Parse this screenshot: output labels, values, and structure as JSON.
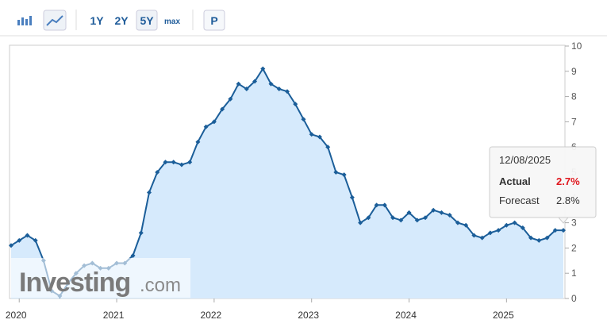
{
  "toolbar": {
    "buttons": [
      "1Y",
      "2Y",
      "5Y",
      "max",
      "P"
    ],
    "active": "5Y"
  },
  "watermark": {
    "brand": "Investing",
    "suffix": ".com"
  },
  "chart_data": {
    "type": "area-line",
    "categories": [
      null,
      "2020",
      null,
      null,
      null,
      null,
      null,
      null,
      null,
      null,
      null,
      null,
      null,
      "2021",
      null,
      null,
      null,
      null,
      null,
      null,
      null,
      null,
      null,
      null,
      null,
      "2022",
      null,
      null,
      null,
      null,
      null,
      null,
      null,
      null,
      null,
      null,
      null,
      "2023",
      null,
      null,
      null,
      null,
      null,
      null,
      null,
      null,
      null,
      null,
      null,
      "2024",
      null,
      null,
      null,
      null,
      null,
      null,
      null,
      null,
      null,
      null,
      null,
      "2025",
      null,
      null,
      null,
      null,
      null,
      null,
      null
    ],
    "values": [
      2.1,
      2.3,
      2.5,
      2.3,
      1.5,
      0.3,
      0.1,
      0.6,
      1.0,
      1.3,
      1.4,
      1.2,
      1.2,
      1.4,
      1.4,
      1.7,
      2.6,
      4.2,
      5.0,
      5.4,
      5.4,
      5.3,
      5.4,
      6.2,
      6.8,
      7.0,
      7.5,
      7.9,
      8.5,
      8.3,
      8.6,
      9.1,
      8.5,
      8.3,
      8.2,
      7.7,
      7.1,
      6.5,
      6.4,
      6.0,
      5.0,
      4.9,
      4.0,
      3.0,
      3.2,
      3.7,
      3.7,
      3.2,
      3.1,
      3.4,
      3.1,
      3.2,
      3.5,
      3.4,
      3.3,
      3.0,
      2.9,
      2.5,
      2.4,
      2.6,
      2.7,
      2.9,
      3.0,
      2.8,
      2.4,
      2.3,
      2.4,
      2.7,
      2.7
    ],
    "color": "#1b5e99",
    "fill": "#d6eafc",
    "ylim": [
      0,
      10
    ],
    "yticks": [
      0,
      1,
      2,
      3,
      4,
      5,
      6,
      7,
      8,
      9,
      10
    ],
    "axis_side": "right",
    "tooltip": {
      "date": "12/08/2025",
      "rows": [
        {
          "label": "Actual",
          "value": 2.7,
          "value_label": "2.7%",
          "color": "#e0161d"
        },
        {
          "label": "Forecast",
          "value": 2.8,
          "value_label": "2.8%",
          "color": "#333333"
        }
      ]
    }
  }
}
